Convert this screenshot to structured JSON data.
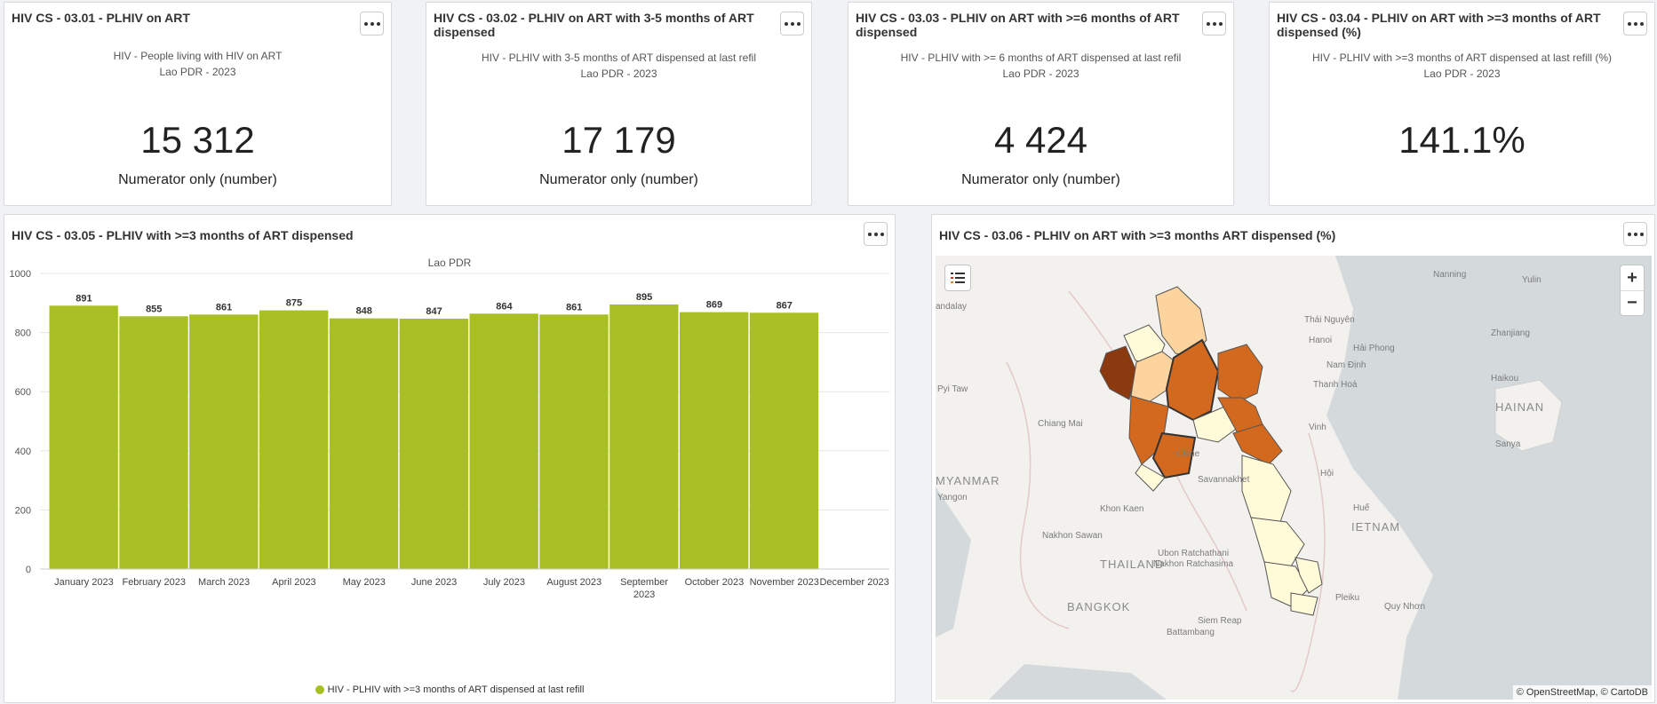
{
  "kpis": [
    {
      "title": "HIV CS - 03.01 - PLHIV on ART",
      "subtitle": "HIV - People living with HIV on ART",
      "region": "Lao PDR - 2023",
      "value": "15 312",
      "note": "Numerator only (number)"
    },
    {
      "title": "HIV CS - 03.02 - PLHIV on ART with 3-5 months of ART dispensed",
      "subtitle": "HIV - PLHIV with 3-5 months of ART dispensed at last refil",
      "region": "Lao PDR - 2023",
      "value": "17 179",
      "note": "Numerator only (number)"
    },
    {
      "title": "HIV CS - 03.03 - PLHIV on ART with >=6 months of ART dispensed",
      "subtitle": "HIV - PLHIV with >= 6 months of ART dispensed at last refil",
      "region": "Lao PDR - 2023",
      "value": "4 424",
      "note": "Numerator only (number)"
    },
    {
      "title": "HIV CS - 03.04 - PLHIV on ART with >=3 months of ART dispensed (%)",
      "subtitle": "HIV - PLHIV with >=3 months of ART dispensed at last refill (%)",
      "region": "Lao PDR - 2023",
      "value": "141.1%",
      "note": ""
    }
  ],
  "bar_card": {
    "title": "HIV CS - 03.05 - PLHIV with >=3 months of ART dispensed"
  },
  "chart_data": {
    "type": "bar",
    "title": "",
    "subtitle": "Lao PDR",
    "categories": [
      "January 2023",
      "February 2023",
      "March 2023",
      "April 2023",
      "May 2023",
      "June 2023",
      "July 2023",
      "August 2023",
      "September 2023",
      "October 2023",
      "November 2023",
      "December 2023"
    ],
    "series": [
      {
        "name": "HIV - PLHIV with >=3 months of ART dispensed at last refill",
        "values": [
          891,
          855,
          861,
          875,
          848,
          847,
          864,
          861,
          895,
          869,
          867,
          null
        ],
        "color": "#a8c024"
      }
    ],
    "ylim": [
      0,
      1000
    ],
    "yticks": [
      0,
      200,
      400,
      600,
      800,
      1000
    ],
    "grid": true,
    "legend": "bottom-center"
  },
  "map_card": {
    "title": "HIV CS - 03.06 - PLHIV on ART with >=3 months ART dispensed (%)",
    "attribution": "© OpenStreetMap, © CartoDB",
    "zoom_in": "+",
    "zoom_out": "−",
    "labels": {
      "nanning": "Nanning",
      "yulin": "Yulin",
      "thai_nguyen": "Thái Nguyên",
      "hanoi": "Hanoi",
      "hai_phong": "Hải Phong",
      "zhanjiang": "Zhanjiang",
      "nam_dinh": "Nam Định",
      "thanh_hoa": "Thanh Hoá",
      "haikou": "Haikou",
      "hainan": "HAINAN",
      "mandalay": "andalay",
      "pyi_taw": "Pyi Taw",
      "chiang_mai": "Chiang Mai",
      "vinh": "Vinh",
      "sanya": "Sanya",
      "myanmar": "MYANMAR",
      "yangon": "Yangon",
      "vientiane": "ntiane",
      "hue": "Huế",
      "hoi": "Hội",
      "khon_kaen": "Khon Kaen",
      "savannakhet": "Savannakhet",
      "vietnam": "IETNAM",
      "nakhon_sawan": "Nakhon Sawan",
      "thailand": "THAILAND",
      "ubon": "Ubon Ratchathani",
      "nakhon_ratchasima": "Nakhon Ratchasima",
      "bangkok": "BANGKOK",
      "siem_reap": "Siem Reap",
      "pleiku": "Pleiku",
      "quy_nhon": "Quy Nhơn",
      "battambang": "Battambang"
    }
  },
  "colors": {
    "bar": "#a8c024",
    "choropleth_dark": "#8b3a0f",
    "choropleth_mid": "#d2691e",
    "choropleth_light": "#fdd49e",
    "choropleth_lightest": "#fffbd9"
  }
}
